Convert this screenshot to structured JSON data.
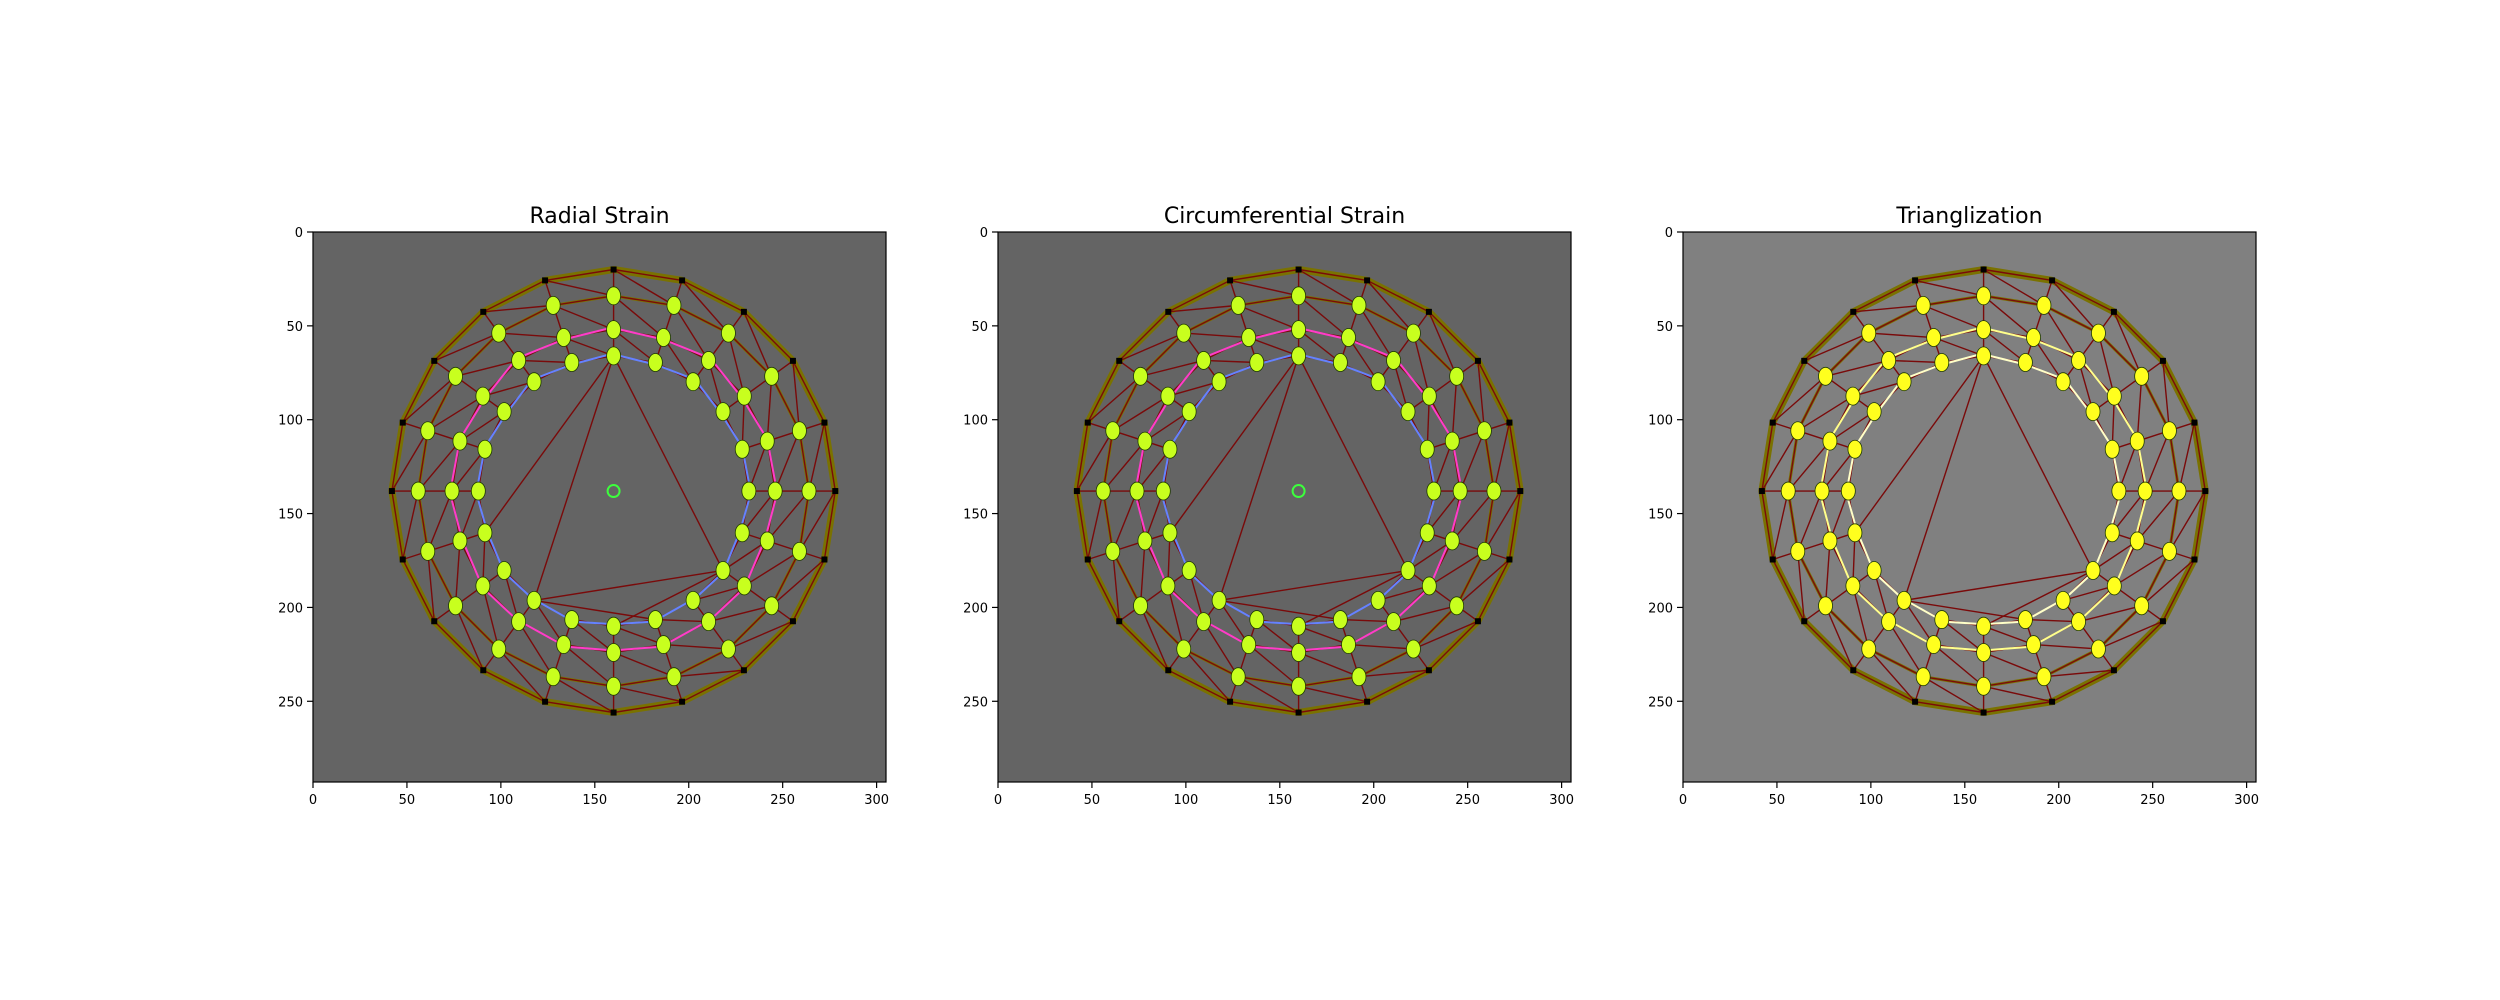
{
  "figure": {
    "background": "#ffffff"
  },
  "chart_data": [
    {
      "type": "image",
      "title": "Radial Strain",
      "xlim": [
        0,
        305
      ],
      "ylim": [
        293,
        0
      ],
      "xticks": [
        "0",
        "50",
        "100",
        "150",
        "200",
        "250",
        "300"
      ],
      "yticks": [
        "0",
        "50",
        "100",
        "150",
        "200",
        "250"
      ],
      "image_background": "#646464",
      "mesh_center": [
        160,
        138
      ],
      "mesh_radii": {
        "outer": 118,
        "outer_mid": 104,
        "inner_mid": 86,
        "inner": 72
      },
      "colors": {
        "frame": "#7a7200",
        "edges": "#7a0a0a",
        "markers": "#c8ff1e",
        "strain_lines": [
          "#ff3cc8",
          "#6482ff"
        ],
        "center_marker": "#3cff3c"
      }
    },
    {
      "type": "image",
      "title": "Circumferential Strain",
      "xlim": [
        0,
        305
      ],
      "ylim": [
        293,
        0
      ],
      "xticks": [
        "0",
        "50",
        "100",
        "150",
        "200",
        "250",
        "300"
      ],
      "yticks": [
        "0",
        "50",
        "100",
        "150",
        "200",
        "250"
      ],
      "image_background": "#646464",
      "mesh_center": [
        160,
        138
      ],
      "mesh_radii": {
        "outer": 118,
        "outer_mid": 104,
        "inner_mid": 86,
        "inner": 72
      },
      "colors": {
        "frame": "#7a7200",
        "edges": "#7a0a0a",
        "markers": "#c8ff1e",
        "strain_lines": [
          "#ff3cc8",
          "#6482ff"
        ],
        "center_marker": "#3cff3c"
      }
    },
    {
      "type": "image",
      "title": "Trianglization",
      "xlim": [
        0,
        305
      ],
      "ylim": [
        293,
        0
      ],
      "xticks": [
        "0",
        "50",
        "100",
        "150",
        "200",
        "250",
        "300"
      ],
      "yticks": [
        "0",
        "50",
        "100",
        "150",
        "200",
        "250"
      ],
      "image_background": "#808080",
      "mesh_center": [
        160,
        138
      ],
      "mesh_radii": {
        "outer": 118,
        "outer_mid": 104,
        "inner_mid": 86,
        "inner": 72
      },
      "colors": {
        "frame": "#7a7200",
        "edges": "#7a0a0a",
        "markers": "#ffff1e",
        "strain_lines": [
          "#ffff8c",
          "#ffffc8"
        ],
        "center_marker": ""
      }
    }
  ]
}
